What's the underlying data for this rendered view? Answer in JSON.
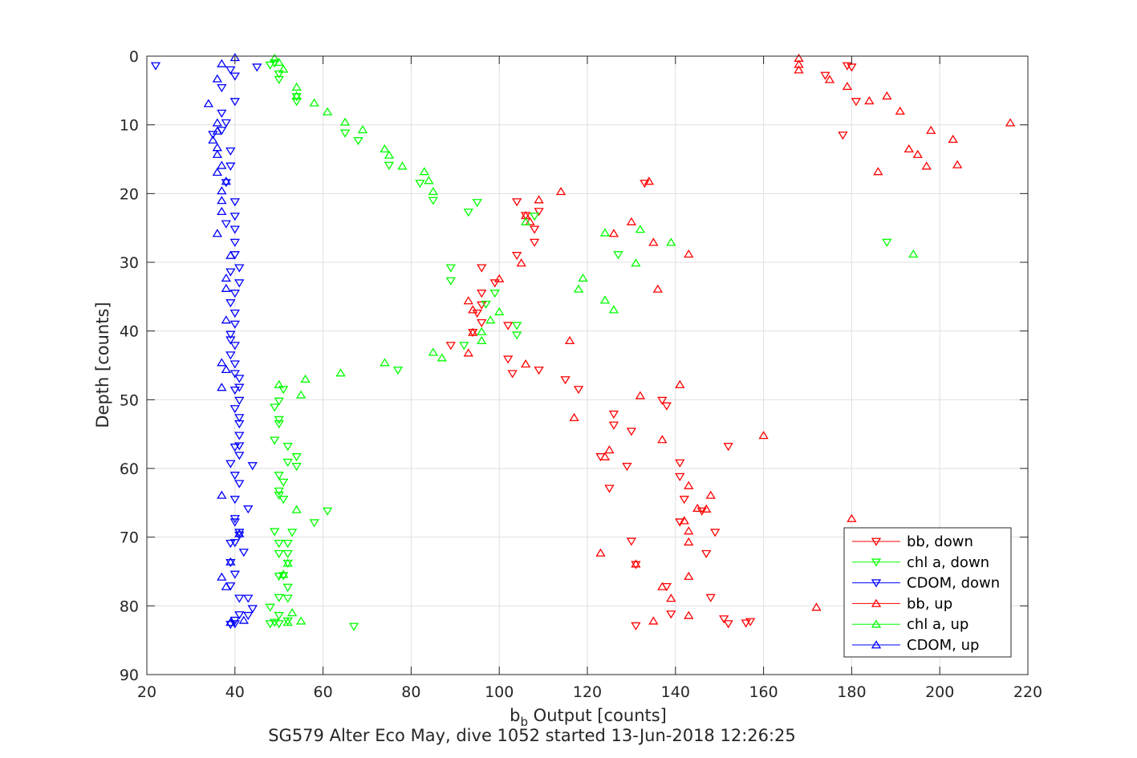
{
  "chart_data": {
    "type": "scatter",
    "title": "",
    "caption": "SG579 Alter Eco May, dive 1052 started 13-Jun-2018 12:26:25",
    "xlabel_main": "b",
    "xlabel_sub": "b",
    "xlabel_rest": " Output [counts]",
    "ylabel": "Depth [counts]",
    "xlim": [
      20,
      220
    ],
    "ylim": [
      0,
      90
    ],
    "y_reversed": true,
    "grid": true,
    "legend_position": "bottom-right",
    "xticks": [
      20,
      40,
      60,
      80,
      100,
      120,
      140,
      160,
      180,
      200,
      220
    ],
    "yticks": [
      0,
      10,
      20,
      30,
      40,
      50,
      60,
      70,
      80,
      90
    ],
    "series": [
      {
        "name": "bb, down",
        "color": "#ff0000",
        "marker": "triangle-down",
        "points": [
          [
            179,
            1.4
          ],
          [
            180,
            1.6
          ],
          [
            174,
            2.8
          ],
          [
            181,
            6.6
          ],
          [
            178,
            11.5
          ],
          [
            133,
            18.5
          ],
          [
            104,
            21.2
          ],
          [
            109,
            22.6
          ],
          [
            106,
            23.2
          ],
          [
            108,
            25.2
          ],
          [
            108,
            27.1
          ],
          [
            104,
            29.0
          ],
          [
            96,
            30.8
          ],
          [
            99,
            33.0
          ],
          [
            96,
            34.5
          ],
          [
            96,
            36.2
          ],
          [
            95,
            37.4
          ],
          [
            96,
            38.8
          ],
          [
            102,
            39.2
          ],
          [
            94,
            40.2
          ],
          [
            89,
            42.1
          ],
          [
            102,
            44.1
          ],
          [
            109,
            45.7
          ],
          [
            103,
            46.2
          ],
          [
            115,
            47.1
          ],
          [
            118,
            48.5
          ],
          [
            137,
            50.1
          ],
          [
            138,
            50.9
          ],
          [
            126,
            52.1
          ],
          [
            126,
            53.7
          ],
          [
            130,
            54.6
          ],
          [
            152,
            56.8
          ],
          [
            123,
            58.3
          ],
          [
            129,
            59.7
          ],
          [
            141,
            59.2
          ],
          [
            141,
            61.2
          ],
          [
            125,
            62.9
          ],
          [
            142,
            64.5
          ],
          [
            141,
            67.8
          ],
          [
            146,
            66.2
          ],
          [
            149,
            69.3
          ],
          [
            130,
            70.6
          ],
          [
            147,
            72.4
          ],
          [
            131,
            74.0
          ],
          [
            138,
            77.2
          ],
          [
            148,
            78.8
          ],
          [
            139,
            81.2
          ],
          [
            151,
            81.9
          ],
          [
            152,
            82.6
          ],
          [
            156,
            82.5
          ],
          [
            157,
            82.3
          ],
          [
            131,
            82.9
          ]
        ]
      },
      {
        "name": "chl a, down",
        "color": "#00ff00",
        "marker": "triangle-down",
        "points": [
          [
            48,
            1.3
          ],
          [
            49,
            1.0
          ],
          [
            50,
            2.6
          ],
          [
            50,
            3.4
          ],
          [
            54,
            5.9
          ],
          [
            54,
            6.6
          ],
          [
            65,
            11.2
          ],
          [
            68,
            12.3
          ],
          [
            75,
            15.9
          ],
          [
            82,
            18.5
          ],
          [
            95,
            21.3
          ],
          [
            85,
            21.0
          ],
          [
            93,
            22.7
          ],
          [
            108,
            23.3
          ],
          [
            127,
            28.9
          ],
          [
            188,
            27.1
          ],
          [
            89,
            30.8
          ],
          [
            89,
            32.7
          ],
          [
            99,
            34.5
          ],
          [
            97,
            36.1
          ],
          [
            104,
            39.2
          ],
          [
            104,
            40.6
          ],
          [
            92,
            42.1
          ],
          [
            77,
            45.7
          ],
          [
            51,
            48.5
          ],
          [
            50,
            50.2
          ],
          [
            49,
            51.1
          ],
          [
            50,
            52.9
          ],
          [
            50,
            53.5
          ],
          [
            49,
            55.9
          ],
          [
            52,
            56.8
          ],
          [
            54,
            58.3
          ],
          [
            52,
            59.1
          ],
          [
            54,
            59.7
          ],
          [
            50,
            61.0
          ],
          [
            51,
            62.0
          ],
          [
            50,
            63.3
          ],
          [
            50,
            63.9
          ],
          [
            51,
            64.5
          ],
          [
            61,
            66.2
          ],
          [
            58,
            67.9
          ],
          [
            49,
            69.2
          ],
          [
            53,
            69.3
          ],
          [
            50,
            70.9
          ],
          [
            52,
            70.9
          ],
          [
            50,
            72.4
          ],
          [
            52,
            72.4
          ],
          [
            52,
            73.8
          ],
          [
            51,
            75.6
          ],
          [
            50,
            75.7
          ],
          [
            52,
            77.3
          ],
          [
            50,
            78.8
          ],
          [
            52,
            78.9
          ],
          [
            48,
            80.2
          ],
          [
            50,
            81.4
          ],
          [
            49,
            82.4
          ],
          [
            50,
            82.6
          ],
          [
            52,
            82.2
          ],
          [
            48,
            82.6
          ],
          [
            67,
            83.0
          ]
        ]
      },
      {
        "name": "CDOM, down",
        "color": "#0000ff",
        "marker": "triangle-down",
        "points": [
          [
            22,
            1.4
          ],
          [
            45,
            1.6
          ],
          [
            39,
            2.0
          ],
          [
            40,
            2.9
          ],
          [
            37,
            4.6
          ],
          [
            40,
            6.6
          ],
          [
            37,
            8.3
          ],
          [
            38,
            9.7
          ],
          [
            37,
            10.8
          ],
          [
            35,
            11.4
          ],
          [
            39,
            13.8
          ],
          [
            39,
            16.0
          ],
          [
            38,
            18.4
          ],
          [
            40,
            21.2
          ],
          [
            40,
            23.3
          ],
          [
            38,
            24.4
          ],
          [
            40,
            25.2
          ],
          [
            40,
            27.1
          ],
          [
            40,
            28.9
          ],
          [
            41,
            30.8
          ],
          [
            39,
            31.4
          ],
          [
            41,
            33.0
          ],
          [
            40,
            34.5
          ],
          [
            39,
            35.9
          ],
          [
            40,
            37.4
          ],
          [
            40,
            39.0
          ],
          [
            39,
            40.5
          ],
          [
            39,
            41.3
          ],
          [
            40,
            42.1
          ],
          [
            39,
            43.5
          ],
          [
            40,
            44.8
          ],
          [
            40,
            46.2
          ],
          [
            41,
            46.9
          ],
          [
            41,
            48.2
          ],
          [
            40,
            48.6
          ],
          [
            41,
            50.1
          ],
          [
            40,
            51.3
          ],
          [
            41,
            52.6
          ],
          [
            41,
            53.5
          ],
          [
            41,
            55.2
          ],
          [
            41,
            56.7
          ],
          [
            40,
            56.9
          ],
          [
            41,
            58.1
          ],
          [
            44,
            59.6
          ],
          [
            39,
            59.3
          ],
          [
            40,
            61.0
          ],
          [
            41,
            62.2
          ],
          [
            40,
            64.5
          ],
          [
            43,
            65.9
          ],
          [
            40,
            67.3
          ],
          [
            40,
            67.8
          ],
          [
            41,
            69.3
          ],
          [
            41,
            69.7
          ],
          [
            39,
            70.9
          ],
          [
            40,
            70.8
          ],
          [
            42,
            72.2
          ],
          [
            39,
            73.7
          ],
          [
            40,
            75.4
          ],
          [
            39,
            77.1
          ],
          [
            41,
            78.9
          ],
          [
            43,
            78.9
          ],
          [
            44,
            80.4
          ],
          [
            41,
            81.3
          ],
          [
            43,
            81.4
          ],
          [
            40,
            82.1
          ],
          [
            39,
            82.7
          ],
          [
            40,
            82.6
          ]
        ]
      },
      {
        "name": "bb, up",
        "color": "#ff0000",
        "marker": "triangle-up",
        "points": [
          [
            168,
            0.3
          ],
          [
            168,
            1.2
          ],
          [
            168,
            2.0
          ],
          [
            175,
            3.4
          ],
          [
            179,
            4.4
          ],
          [
            184,
            6.5
          ],
          [
            188,
            5.8
          ],
          [
            191,
            8.0
          ],
          [
            198,
            10.8
          ],
          [
            216,
            9.7
          ],
          [
            203,
            12.1
          ],
          [
            193,
            13.5
          ],
          [
            195,
            14.3
          ],
          [
            204,
            15.8
          ],
          [
            197,
            16.0
          ],
          [
            186,
            16.8
          ],
          [
            134,
            18.2
          ],
          [
            114,
            19.7
          ],
          [
            109,
            20.9
          ],
          [
            106,
            23.2
          ],
          [
            107,
            24.1
          ],
          [
            130,
            24.1
          ],
          [
            126,
            25.8
          ],
          [
            135,
            27.1
          ],
          [
            143,
            28.8
          ],
          [
            105,
            30.1
          ],
          [
            100,
            32.4
          ],
          [
            136,
            33.9
          ],
          [
            93,
            35.6
          ],
          [
            94,
            36.9
          ],
          [
            94,
            40.2
          ],
          [
            93,
            43.2
          ],
          [
            106,
            44.8
          ],
          [
            116,
            41.4
          ],
          [
            141,
            47.8
          ],
          [
            132,
            49.4
          ],
          [
            117,
            52.6
          ],
          [
            160,
            55.2
          ],
          [
            137,
            55.8
          ],
          [
            125,
            57.3
          ],
          [
            124,
            58.3
          ],
          [
            143,
            62.5
          ],
          [
            148,
            63.9
          ],
          [
            145,
            65.8
          ],
          [
            147,
            65.9
          ],
          [
            142,
            67.6
          ],
          [
            180,
            67.3
          ],
          [
            143,
            69.1
          ],
          [
            143,
            70.7
          ],
          [
            123,
            72.3
          ],
          [
            131,
            73.9
          ],
          [
            143,
            75.7
          ],
          [
            137,
            77.2
          ],
          [
            139,
            78.9
          ],
          [
            172,
            80.2
          ],
          [
            143,
            81.4
          ],
          [
            135,
            82.2
          ]
        ]
      },
      {
        "name": "chl a, up",
        "color": "#00ff00",
        "marker": "triangle-up",
        "points": [
          [
            49,
            0.3
          ],
          [
            50,
            0.9
          ],
          [
            51,
            1.9
          ],
          [
            54,
            4.5
          ],
          [
            54,
            5.8
          ],
          [
            58,
            6.8
          ],
          [
            61,
            8.1
          ],
          [
            65,
            9.6
          ],
          [
            69,
            10.7
          ],
          [
            74,
            13.5
          ],
          [
            75,
            14.4
          ],
          [
            78,
            16.0
          ],
          [
            83,
            16.8
          ],
          [
            84,
            18.1
          ],
          [
            85,
            19.7
          ],
          [
            106,
            24.1
          ],
          [
            124,
            25.7
          ],
          [
            132,
            25.2
          ],
          [
            139,
            27.1
          ],
          [
            131,
            30.1
          ],
          [
            194,
            28.8
          ],
          [
            119,
            32.3
          ],
          [
            118,
            33.9
          ],
          [
            124,
            35.5
          ],
          [
            126,
            36.9
          ],
          [
            100,
            37.2
          ],
          [
            98,
            38.4
          ],
          [
            96,
            40.1
          ],
          [
            96,
            41.4
          ],
          [
            85,
            43.1
          ],
          [
            87,
            43.9
          ],
          [
            74,
            44.6
          ],
          [
            64,
            46.1
          ],
          [
            56,
            47.0
          ],
          [
            50,
            47.8
          ],
          [
            55,
            49.3
          ],
          [
            54,
            66.0
          ],
          [
            52,
            73.8
          ],
          [
            51,
            75.4
          ],
          [
            53,
            81.0
          ],
          [
            55,
            82.2
          ],
          [
            52,
            82.4
          ]
        ]
      },
      {
        "name": "CDOM, up",
        "color": "#0000ff",
        "marker": "triangle-up",
        "points": [
          [
            40,
            0.2
          ],
          [
            37,
            1.1
          ],
          [
            36,
            3.3
          ],
          [
            34,
            6.9
          ],
          [
            36,
            9.7
          ],
          [
            36,
            10.9
          ],
          [
            35,
            12.2
          ],
          [
            36,
            13.3
          ],
          [
            36,
            14.3
          ],
          [
            37,
            15.9
          ],
          [
            36,
            16.9
          ],
          [
            38,
            18.2
          ],
          [
            37,
            19.6
          ],
          [
            37,
            21.0
          ],
          [
            37,
            22.6
          ],
          [
            36,
            25.8
          ],
          [
            39,
            29.0
          ],
          [
            38,
            32.3
          ],
          [
            38,
            33.8
          ],
          [
            38,
            38.4
          ],
          [
            37,
            44.6
          ],
          [
            38,
            45.6
          ],
          [
            37,
            48.2
          ],
          [
            37,
            63.9
          ],
          [
            37,
            75.8
          ],
          [
            38,
            77.2
          ],
          [
            41,
            69.5
          ],
          [
            39,
            73.6
          ],
          [
            42,
            82.1
          ],
          [
            39,
            82.4
          ]
        ]
      }
    ]
  }
}
